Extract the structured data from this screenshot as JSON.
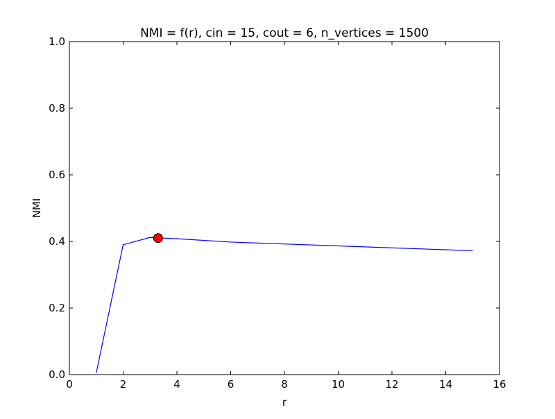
{
  "chart_data": {
    "type": "line",
    "title": "NMI = f(r), cin = 15, cout = 6, n_vertices = 1500",
    "xlabel": "r",
    "ylabel": "NMI",
    "xlim": [
      0,
      16
    ],
    "ylim": [
      0.0,
      1.0
    ],
    "x_ticks": [
      0,
      2,
      4,
      6,
      8,
      10,
      12,
      14,
      16
    ],
    "y_ticks": [
      0.0,
      0.2,
      0.4,
      0.6,
      0.8,
      1.0
    ],
    "x_tick_labels": [
      "0",
      "2",
      "4",
      "6",
      "8",
      "10",
      "12",
      "14",
      "16"
    ],
    "y_tick_labels": [
      "0.0",
      "0.2",
      "0.4",
      "0.6",
      "0.8",
      "1.0"
    ],
    "grid": false,
    "series": [
      {
        "color": "#0000ff",
        "x": [
          1,
          2,
          3,
          4,
          6,
          15
        ],
        "y": [
          0.005,
          0.39,
          0.412,
          0.408,
          0.398,
          0.372
        ]
      }
    ],
    "marker": {
      "x": 3.3,
      "y": 0.41,
      "color": "#ff0000",
      "edge_color": "#000000"
    }
  }
}
